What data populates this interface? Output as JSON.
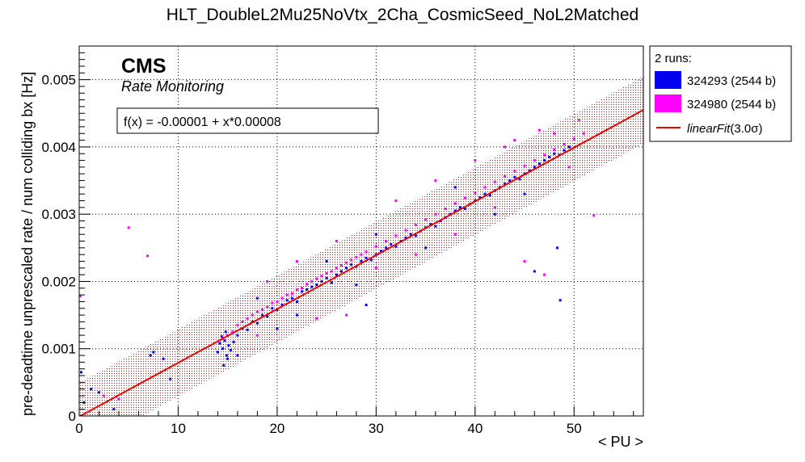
{
  "chart_data": {
    "type": "scatter",
    "title": "HLT_DoubleL2Mu25NoVtx_2Cha_CosmicSeed_NoL2Matched",
    "xlabel": "< PU >",
    "ylabel": "pre-deadtime unprescaled rate / num colliding bx [Hz]",
    "xlim": [
      0,
      57
    ],
    "ylim": [
      0,
      0.0055
    ],
    "x_ticks": [
      0,
      10,
      20,
      30,
      40,
      50
    ],
    "x_tick_labels": [
      "0",
      "10",
      "20",
      "30",
      "40",
      "50"
    ],
    "y_ticks": [
      0,
      0.001,
      0.002,
      0.003,
      0.004,
      0.005
    ],
    "y_tick_labels": [
      "0",
      "0.001",
      "0.002",
      "0.003",
      "0.004",
      "0.005"
    ],
    "grid": true,
    "experiment_label": "CMS",
    "experiment_sublabel": "Rate Monitoring",
    "fit_text": "f(x) = -0.00001 + x*0.00008",
    "fit": {
      "intercept": -1e-05,
      "slope": 8e-05,
      "band_sigma": 3.0,
      "band_halfwidth": 0.0005,
      "color": "#ee0000"
    },
    "legend": {
      "header": "2 runs:",
      "position": "right-outside",
      "entries": [
        {
          "label": "324293 (2544 b)",
          "color": "#0000ee",
          "kind": "marker"
        },
        {
          "label": "324980 (2544 b)",
          "color": "#ff00ff",
          "kind": "marker"
        },
        {
          "label": "linearFit",
          "sigma_text": "(3.0σ)",
          "color": "#ee0000",
          "kind": "line"
        }
      ]
    },
    "series": [
      {
        "name": "324293 (2544 b)",
        "color": "#0000ee",
        "points": [
          [
            14.0,
            0.00095
          ],
          [
            14.2,
            0.00108
          ],
          [
            14.5,
            0.001
          ],
          [
            14.7,
            0.00112
          ],
          [
            14.9,
            0.0009
          ],
          [
            15.1,
            0.00105
          ],
          [
            15.3,
            0.00098
          ],
          [
            14.4,
            0.00118
          ],
          [
            14.8,
            0.00125
          ],
          [
            15.6,
            0.0011
          ],
          [
            16.0,
            0.0012
          ],
          [
            16.5,
            0.0013
          ],
          [
            17.0,
            0.00128
          ],
          [
            17.5,
            0.0014
          ],
          [
            18.0,
            0.00138
          ],
          [
            18.5,
            0.0015
          ],
          [
            19.0,
            0.00148
          ],
          [
            19.5,
            0.0016
          ],
          [
            20.0,
            0.00158
          ],
          [
            20.5,
            0.00165
          ],
          [
            21.0,
            0.00172
          ],
          [
            21.5,
            0.00175
          ],
          [
            22.0,
            0.0017
          ],
          [
            22.5,
            0.00185
          ],
          [
            23.0,
            0.00188
          ],
          [
            23.5,
            0.00192
          ],
          [
            24.0,
            0.00195
          ],
          [
            24.5,
            0.002
          ],
          [
            25.0,
            0.00205
          ],
          [
            25.5,
            0.00198
          ],
          [
            26.0,
            0.0021
          ],
          [
            26.5,
            0.00215
          ],
          [
            27.0,
            0.0022
          ],
          [
            27.5,
            0.00225
          ],
          [
            28.0,
            0.00222
          ],
          [
            28.5,
            0.0023
          ],
          [
            29.0,
            0.00235
          ],
          [
            29.5,
            0.00232
          ],
          [
            30.0,
            0.0024
          ],
          [
            30.5,
            0.00245
          ],
          [
            31.0,
            0.0025
          ],
          [
            31.5,
            0.00255
          ],
          [
            32.0,
            0.00252
          ],
          [
            32.5,
            0.0026
          ],
          [
            33.0,
            0.00265
          ],
          [
            33.5,
            0.0027
          ],
          [
            34.0,
            0.00268
          ],
          [
            34.5,
            0.00275
          ],
          [
            35.0,
            0.0028
          ],
          [
            35.5,
            0.00285
          ],
          [
            36.0,
            0.00282
          ],
          [
            36.5,
            0.0029
          ],
          [
            37.0,
            0.00295
          ],
          [
            37.5,
            0.003
          ],
          [
            38.0,
            0.00305
          ],
          [
            38.5,
            0.0031
          ],
          [
            39.0,
            0.00308
          ],
          [
            39.5,
            0.00315
          ],
          [
            40.0,
            0.0032
          ],
          [
            40.5,
            0.00325
          ],
          [
            41.0,
            0.0033
          ],
          [
            41.5,
            0.00328
          ],
          [
            42.0,
            0.00335
          ],
          [
            42.5,
            0.0034
          ],
          [
            43.0,
            0.00345
          ],
          [
            43.5,
            0.0035
          ],
          [
            44.0,
            0.00355
          ],
          [
            44.5,
            0.00352
          ],
          [
            45.0,
            0.0036
          ],
          [
            45.5,
            0.00365
          ],
          [
            46.0,
            0.0037
          ],
          [
            46.5,
            0.00375
          ],
          [
            47.0,
            0.0038
          ],
          [
            47.5,
            0.00385
          ],
          [
            48.0,
            0.0039
          ],
          [
            48.5,
            0.00388
          ],
          [
            49.0,
            0.00395
          ],
          [
            49.5,
            0.004
          ],
          [
            18.0,
            0.00175
          ],
          [
            22.0,
            0.0015
          ],
          [
            28.0,
            0.00195
          ],
          [
            35.0,
            0.0025
          ],
          [
            42.0,
            0.003
          ],
          [
            30.0,
            0.0027
          ],
          [
            25.0,
            0.0023
          ],
          [
            38.0,
            0.0034
          ],
          [
            45.0,
            0.0033
          ],
          [
            20.0,
            0.0013
          ],
          [
            48.3,
            0.0025
          ],
          [
            48.6,
            0.00172
          ],
          [
            29.0,
            0.00165
          ],
          [
            46.0,
            0.00215
          ],
          [
            0.2,
            0.00065
          ],
          [
            0.5,
            0.0002
          ],
          [
            1.2,
            0.0004
          ],
          [
            2.0,
            0.00035
          ],
          [
            3.5,
            0.0001
          ],
          [
            7.2,
            0.0009
          ],
          [
            7.5,
            0.00095
          ],
          [
            8.5,
            0.00085
          ],
          [
            9.2,
            0.00055
          ],
          [
            15.0,
            0.00085
          ],
          [
            16.0,
            0.0009
          ],
          [
            14.6,
            0.00075
          ]
        ]
      },
      {
        "name": "324980 (2544 b)",
        "color": "#ff00ff",
        "points": [
          [
            14.5,
            0.00115
          ],
          [
            15.0,
            0.0012
          ],
          [
            15.5,
            0.00125
          ],
          [
            16.0,
            0.00135
          ],
          [
            16.5,
            0.0014
          ],
          [
            17.0,
            0.00145
          ],
          [
            17.5,
            0.0015
          ],
          [
            18.0,
            0.00155
          ],
          [
            18.5,
            0.00158
          ],
          [
            19.0,
            0.00162
          ],
          [
            19.5,
            0.00168
          ],
          [
            20.0,
            0.0017
          ],
          [
            20.5,
            0.00175
          ],
          [
            21.0,
            0.0018
          ],
          [
            21.5,
            0.00182
          ],
          [
            22.0,
            0.00188
          ],
          [
            22.5,
            0.0019
          ],
          [
            23.0,
            0.00196
          ],
          [
            23.5,
            0.002
          ],
          [
            24.0,
            0.00204
          ],
          [
            24.5,
            0.00208
          ],
          [
            25.0,
            0.00212
          ],
          [
            25.5,
            0.00215
          ],
          [
            26.0,
            0.0022
          ],
          [
            26.5,
            0.00224
          ],
          [
            27.0,
            0.00228
          ],
          [
            27.5,
            0.00232
          ],
          [
            28.0,
            0.00236
          ],
          [
            28.5,
            0.0024
          ],
          [
            29.0,
            0.00244
          ],
          [
            30.0,
            0.00252
          ],
          [
            31.0,
            0.0026
          ],
          [
            32.0,
            0.00268
          ],
          [
            33.0,
            0.00276
          ],
          [
            34.0,
            0.00284
          ],
          [
            35.0,
            0.00292
          ],
          [
            36.0,
            0.003
          ],
          [
            37.0,
            0.00308
          ],
          [
            38.0,
            0.00316
          ],
          [
            39.0,
            0.00324
          ],
          [
            40.0,
            0.00332
          ],
          [
            41.0,
            0.0034
          ],
          [
            42.0,
            0.00348
          ],
          [
            43.0,
            0.00356
          ],
          [
            44.0,
            0.00364
          ],
          [
            45.0,
            0.00372
          ],
          [
            46.0,
            0.0038
          ],
          [
            47.0,
            0.00388
          ],
          [
            48.0,
            0.00396
          ],
          [
            49.0,
            0.00404
          ],
          [
            50.0,
            0.00412
          ],
          [
            50.5,
            0.0044
          ],
          [
            51.0,
            0.0042
          ],
          [
            52.0,
            0.00298
          ],
          [
            46.5,
            0.00425
          ],
          [
            43.0,
            0.004
          ],
          [
            47.0,
            0.0021
          ],
          [
            45.0,
            0.0023
          ],
          [
            5.0,
            0.0028
          ],
          [
            6.9,
            0.00238
          ],
          [
            27.0,
            0.0015
          ],
          [
            24.0,
            0.00145
          ],
          [
            32.0,
            0.0032
          ],
          [
            36.0,
            0.0035
          ],
          [
            40.0,
            0.0038
          ],
          [
            22.0,
            0.0023
          ],
          [
            19.0,
            0.002
          ],
          [
            26.0,
            0.0026
          ],
          [
            34.0,
            0.0024
          ],
          [
            38.0,
            0.0027
          ],
          [
            49.5,
            0.0037
          ],
          [
            48.0,
            0.0042
          ],
          [
            44.0,
            0.0041
          ],
          [
            42.0,
            0.0031
          ],
          [
            30.0,
            0.0022
          ],
          [
            18.0,
            0.0012
          ],
          [
            0.1,
            0.00178
          ],
          [
            4.0,
            0.00025
          ],
          [
            2.5,
            0.0003
          ]
        ]
      }
    ]
  }
}
